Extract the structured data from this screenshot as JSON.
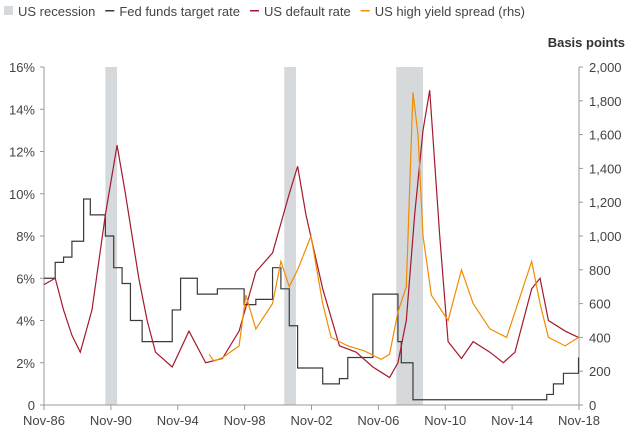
{
  "chart_data": {
    "type": "line",
    "title": "",
    "legend": [
      {
        "name": "US recession",
        "color": "#d5d9dc",
        "shape": "square"
      },
      {
        "name": "Fed funds target rate",
        "color": "#3a3a3a",
        "shape": "line"
      },
      {
        "name": "US default rate",
        "color": "#a31a2c",
        "shape": "line"
      },
      {
        "name": "US high yield spread (rhs)",
        "color": "#f08c00",
        "shape": "line"
      }
    ],
    "legend_position": "top-left",
    "y2label": "Basis points",
    "xlim": [
      1986.83,
      2018.83
    ],
    "ylim": [
      0,
      16
    ],
    "y2lim": [
      0,
      2000
    ],
    "x_ticks": [
      {
        "v": 1986.83,
        "label": "Nov-86"
      },
      {
        "v": 1990.83,
        "label": "Nov-90"
      },
      {
        "v": 1994.83,
        "label": "Nov-94"
      },
      {
        "v": 1998.83,
        "label": "Nov-98"
      },
      {
        "v": 2002.83,
        "label": "Nov-02"
      },
      {
        "v": 2006.83,
        "label": "Nov-06"
      },
      {
        "v": 2010.83,
        "label": "Nov-10"
      },
      {
        "v": 2014.83,
        "label": "Nov-14"
      },
      {
        "v": 2018.83,
        "label": "Nov-18"
      }
    ],
    "y_ticks": [
      {
        "v": 0,
        "label": "0"
      },
      {
        "v": 2,
        "label": "2%"
      },
      {
        "v": 4,
        "label": "4%"
      },
      {
        "v": 6,
        "label": "6%"
      },
      {
        "v": 8,
        "label": "8%"
      },
      {
        "v": 10,
        "label": "10%"
      },
      {
        "v": 12,
        "label": "12%"
      },
      {
        "v": 14,
        "label": "14%"
      },
      {
        "v": 16,
        "label": "16%"
      }
    ],
    "y2_ticks": [
      {
        "v": 0,
        "label": "0"
      },
      {
        "v": 200,
        "label": "200"
      },
      {
        "v": 400,
        "label": "400"
      },
      {
        "v": 600,
        "label": "600"
      },
      {
        "v": 800,
        "label": "800"
      },
      {
        "v": 1000,
        "label": "1,000"
      },
      {
        "v": 1200,
        "label": "1,200"
      },
      {
        "v": 1400,
        "label": "1,400"
      },
      {
        "v": 1600,
        "label": "1,600"
      },
      {
        "v": 1800,
        "label": "1,800"
      },
      {
        "v": 2000,
        "label": "2,000"
      }
    ],
    "recessions": [
      [
        1990.5,
        1991.2
      ],
      [
        2001.2,
        2001.9
      ],
      [
        2007.9,
        2009.5
      ]
    ],
    "series": [
      {
        "name": "Fed funds target rate",
        "axis": "left",
        "color": "#3a3a3a",
        "step": true,
        "points": [
          [
            1986.83,
            6
          ],
          [
            1987.5,
            6.75
          ],
          [
            1988,
            7
          ],
          [
            1988.5,
            7.75
          ],
          [
            1989.2,
            9.75
          ],
          [
            1989.6,
            9
          ],
          [
            1990.5,
            8
          ],
          [
            1991,
            6.5
          ],
          [
            1991.5,
            5.75
          ],
          [
            1992,
            4
          ],
          [
            1992.7,
            3
          ],
          [
            1994.1,
            3
          ],
          [
            1994.5,
            4.5
          ],
          [
            1995,
            6
          ],
          [
            1996,
            5.25
          ],
          [
            1997.2,
            5.5
          ],
          [
            1998.8,
            4.75
          ],
          [
            1999.5,
            5
          ],
          [
            2000.5,
            6.5
          ],
          [
            2001,
            5.5
          ],
          [
            2001.5,
            3.75
          ],
          [
            2002,
            1.75
          ],
          [
            2003.5,
            1
          ],
          [
            2004.5,
            1.25
          ],
          [
            2005,
            2.25
          ],
          [
            2006.5,
            5.25
          ],
          [
            2007.6,
            5.25
          ],
          [
            2008,
            3
          ],
          [
            2008.2,
            2
          ],
          [
            2008.9,
            0.25
          ],
          [
            2015.9,
            0.25
          ],
          [
            2016.9,
            0.5
          ],
          [
            2017.3,
            1
          ],
          [
            2017.9,
            1.5
          ],
          [
            2018.8,
            2.25
          ]
        ]
      },
      {
        "name": "US default rate",
        "axis": "left",
        "color": "#a31a2c",
        "points": [
          [
            1986.83,
            5.7
          ],
          [
            1987.5,
            6
          ],
          [
            1988,
            4.5
          ],
          [
            1988.5,
            3.3
          ],
          [
            1989,
            2.5
          ],
          [
            1989.7,
            4.5
          ],
          [
            1990.5,
            9
          ],
          [
            1991.2,
            12.3
          ],
          [
            1991.7,
            10
          ],
          [
            1992.5,
            6
          ],
          [
            1993,
            4
          ],
          [
            1993.5,
            2.5
          ],
          [
            1994.5,
            1.8
          ],
          [
            1995.5,
            3.5
          ],
          [
            1996.5,
            2
          ],
          [
            1997.5,
            2.2
          ],
          [
            1998.5,
            3.5
          ],
          [
            1999.5,
            6.3
          ],
          [
            2000.5,
            7.2
          ],
          [
            2001.5,
            10
          ],
          [
            2002,
            11.3
          ],
          [
            2002.5,
            9
          ],
          [
            2003.5,
            5.5
          ],
          [
            2004.5,
            2.8
          ],
          [
            2005.5,
            2.5
          ],
          [
            2006.5,
            1.8
          ],
          [
            2007.5,
            1.3
          ],
          [
            2008,
            2
          ],
          [
            2008.5,
            4
          ],
          [
            2009,
            9
          ],
          [
            2009.5,
            13
          ],
          [
            2009.9,
            14.9
          ],
          [
            2010.5,
            8
          ],
          [
            2011,
            3
          ],
          [
            2011.8,
            2.2
          ],
          [
            2012.5,
            3
          ],
          [
            2013.5,
            2.5
          ],
          [
            2014.3,
            2
          ],
          [
            2015,
            2.5
          ],
          [
            2016,
            5.5
          ],
          [
            2016.5,
            6
          ],
          [
            2017,
            4
          ],
          [
            2018,
            3.5
          ],
          [
            2018.8,
            3.2
          ]
        ]
      },
      {
        "name": "US high yield spread (rhs)",
        "axis": "right",
        "color": "#f08c00",
        "points": [
          [
            1996.7,
            300
          ],
          [
            1997,
            260
          ],
          [
            1997.5,
            280
          ],
          [
            1998.5,
            350
          ],
          [
            1998.9,
            650
          ],
          [
            1999.5,
            450
          ],
          [
            2000.5,
            600
          ],
          [
            2001,
            850
          ],
          [
            2001.5,
            700
          ],
          [
            2002,
            800
          ],
          [
            2002.8,
            1000
          ],
          [
            2003.5,
            600
          ],
          [
            2004,
            400
          ],
          [
            2005,
            350
          ],
          [
            2006,
            320
          ],
          [
            2007,
            270
          ],
          [
            2007.5,
            300
          ],
          [
            2008,
            550
          ],
          [
            2008.5,
            700
          ],
          [
            2008.9,
            1850
          ],
          [
            2009.2,
            1600
          ],
          [
            2009.5,
            1000
          ],
          [
            2010,
            650
          ],
          [
            2011,
            500
          ],
          [
            2011.8,
            800
          ],
          [
            2012.5,
            600
          ],
          [
            2013.5,
            450
          ],
          [
            2014.5,
            400
          ],
          [
            2015,
            550
          ],
          [
            2016,
            850
          ],
          [
            2016.5,
            600
          ],
          [
            2017,
            400
          ],
          [
            2018,
            350
          ],
          [
            2018.8,
            400
          ]
        ]
      }
    ]
  }
}
